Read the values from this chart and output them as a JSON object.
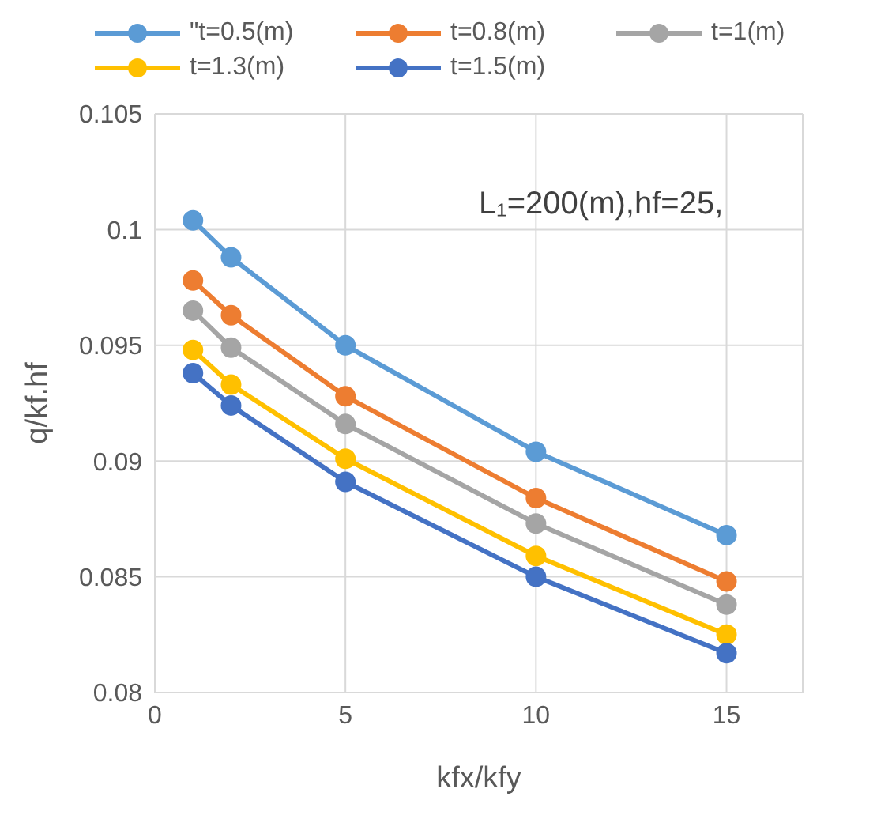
{
  "chart_data": {
    "type": "line",
    "xlabel": "kfx/kfy",
    "ylabel": "q/kf.hf",
    "x": [
      1,
      2,
      5,
      10,
      15
    ],
    "series": [
      {
        "name": "\"t=0.5(m)",
        "color": "#5b9bd5",
        "values": [
          0.1004,
          0.0988,
          0.095,
          0.0904,
          0.0868
        ]
      },
      {
        "name": "t=0.8(m)",
        "color": "#ed7d31",
        "values": [
          0.0978,
          0.0963,
          0.0928,
          0.0884,
          0.0848
        ]
      },
      {
        "name": "t=1(m)",
        "color": "#a5a5a5",
        "values": [
          0.0965,
          0.0949,
          0.0916,
          0.0873,
          0.0838
        ]
      },
      {
        "name": "t=1.3(m)",
        "color": "#ffc000",
        "values": [
          0.0948,
          0.0933,
          0.0901,
          0.0859,
          0.0825
        ]
      },
      {
        "name": "t=1.5(m)",
        "color": "#4472c4",
        "values": [
          0.0938,
          0.0924,
          0.0891,
          0.085,
          0.0817
        ]
      }
    ],
    "xlim": [
      0,
      17
    ],
    "xticks": [
      0,
      5,
      10,
      15
    ],
    "ylim": [
      0.08,
      0.105
    ],
    "yticks": [
      0.08,
      0.085,
      0.09,
      0.095,
      0.1,
      0.105
    ],
    "grid": true,
    "legend": "top",
    "marker": "circle",
    "line_style": "solid",
    "annotations": [
      "L₁=200(m),hf=25,"
    ]
  }
}
